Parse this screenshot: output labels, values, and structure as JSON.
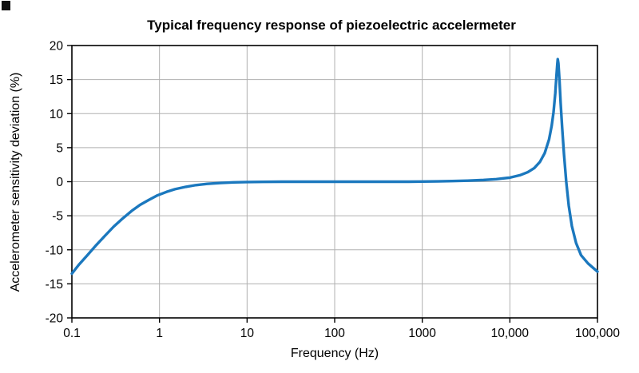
{
  "chart": {
    "title": "Typical frequency response of piezoelectric accelermeter",
    "xlabel": "Frequency (Hz)",
    "ylabel": "Accelerometer sensitivity deviation (%)"
  },
  "chart_data": {
    "type": "line",
    "x_scale": "log",
    "xlim": [
      0.1,
      100000
    ],
    "ylim": [
      -20,
      20
    ],
    "x_ticks": [
      0.1,
      1,
      10,
      100,
      1000,
      10000,
      100000
    ],
    "x_tick_labels": [
      "0.1",
      "1",
      "10",
      "100",
      "1000",
      "10,000",
      "100,000"
    ],
    "y_ticks": [
      -20,
      -15,
      -10,
      -5,
      0,
      5,
      10,
      15,
      20
    ],
    "grid": true,
    "legend": "none",
    "line_color": "#1b78be",
    "grid_color": "#b0b0b0",
    "frame_color": "#000000",
    "series": [
      {
        "name": "sensitivity deviation",
        "points": [
          [
            0.1,
            -13.5
          ],
          [
            0.12,
            -12.2
          ],
          [
            0.15,
            -10.8
          ],
          [
            0.19,
            -9.3
          ],
          [
            0.24,
            -7.9
          ],
          [
            0.3,
            -6.6
          ],
          [
            0.38,
            -5.4
          ],
          [
            0.48,
            -4.3
          ],
          [
            0.6,
            -3.4
          ],
          [
            0.75,
            -2.7
          ],
          [
            0.95,
            -2.0
          ],
          [
            1.2,
            -1.5
          ],
          [
            1.5,
            -1.1
          ],
          [
            2,
            -0.75
          ],
          [
            2.6,
            -0.5
          ],
          [
            3.5,
            -0.32
          ],
          [
            5,
            -0.18
          ],
          [
            7,
            -0.1
          ],
          [
            10,
            -0.05
          ],
          [
            15,
            -0.02
          ],
          [
            25,
            0
          ],
          [
            50,
            0
          ],
          [
            100,
            0
          ],
          [
            200,
            0
          ],
          [
            400,
            0
          ],
          [
            700,
            0
          ],
          [
            1000,
            0.02
          ],
          [
            1500,
            0.05
          ],
          [
            2200,
            0.1
          ],
          [
            3300,
            0.15
          ],
          [
            5000,
            0.25
          ],
          [
            7000,
            0.38
          ],
          [
            10000,
            0.6
          ],
          [
            13000,
            0.95
          ],
          [
            16000,
            1.4
          ],
          [
            19000,
            2.0
          ],
          [
            22000,
            2.9
          ],
          [
            25000,
            4.2
          ],
          [
            28000,
            6.2
          ],
          [
            30000,
            8.2
          ],
          [
            31500,
            10.2
          ],
          [
            33000,
            13
          ],
          [
            34000,
            15.5
          ],
          [
            34800,
            17.3
          ],
          [
            35200,
            18
          ],
          [
            35800,
            17.4
          ],
          [
            36800,
            15
          ],
          [
            38000,
            11.5
          ],
          [
            39500,
            8
          ],
          [
            41500,
            4
          ],
          [
            44000,
            0
          ],
          [
            47000,
            -3.5
          ],
          [
            51000,
            -6.5
          ],
          [
            57000,
            -9
          ],
          [
            65000,
            -10.8
          ],
          [
            78000,
            -12
          ],
          [
            100000,
            -13.2
          ]
        ]
      }
    ]
  }
}
